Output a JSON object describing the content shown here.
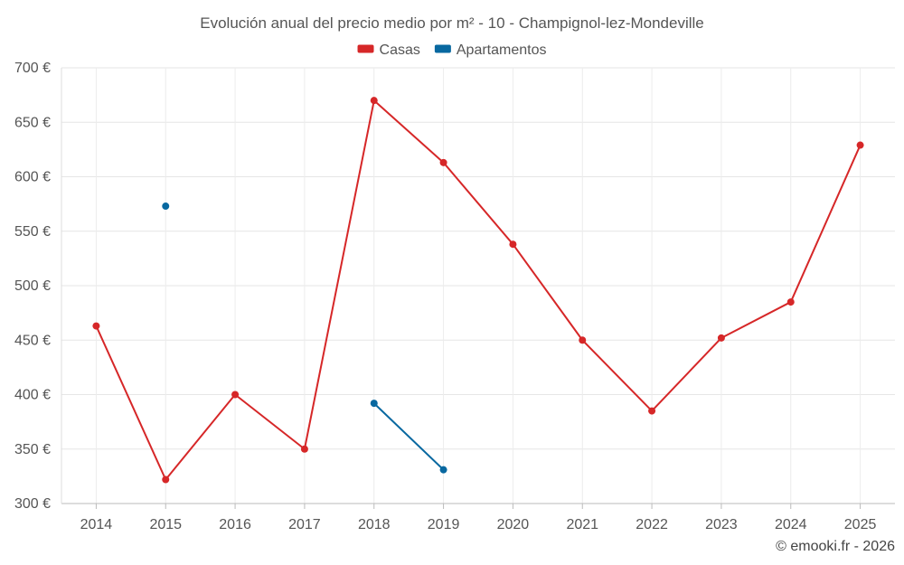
{
  "chart_data": {
    "type": "line",
    "title": "Evolución anual del precio medio por m² - 10 - Champignol-lez-Mondeville",
    "xlabel": "",
    "ylabel": "",
    "categories": [
      "2014",
      "2015",
      "2016",
      "2017",
      "2018",
      "2019",
      "2020",
      "2021",
      "2022",
      "2023",
      "2024",
      "2025"
    ],
    "ylim": [
      300,
      700
    ],
    "yticks": [
      300,
      350,
      400,
      450,
      500,
      550,
      600,
      650,
      700
    ],
    "ytick_labels": [
      "300 €",
      "350 €",
      "400 €",
      "450 €",
      "500 €",
      "550 €",
      "600 €",
      "650 €",
      "700 €"
    ],
    "grid": true,
    "legend_position": "top-center",
    "series": [
      {
        "name": "Casas",
        "color": "#d62728",
        "values": [
          463,
          322,
          400,
          350,
          670,
          613,
          538,
          450,
          385,
          452,
          485,
          629
        ]
      },
      {
        "name": "Apartamentos",
        "color": "#0868a0",
        "values": [
          null,
          573,
          null,
          null,
          392,
          331,
          null,
          null,
          null,
          null,
          null,
          null
        ]
      }
    ]
  },
  "credit": "© emooki.fr - 2026"
}
